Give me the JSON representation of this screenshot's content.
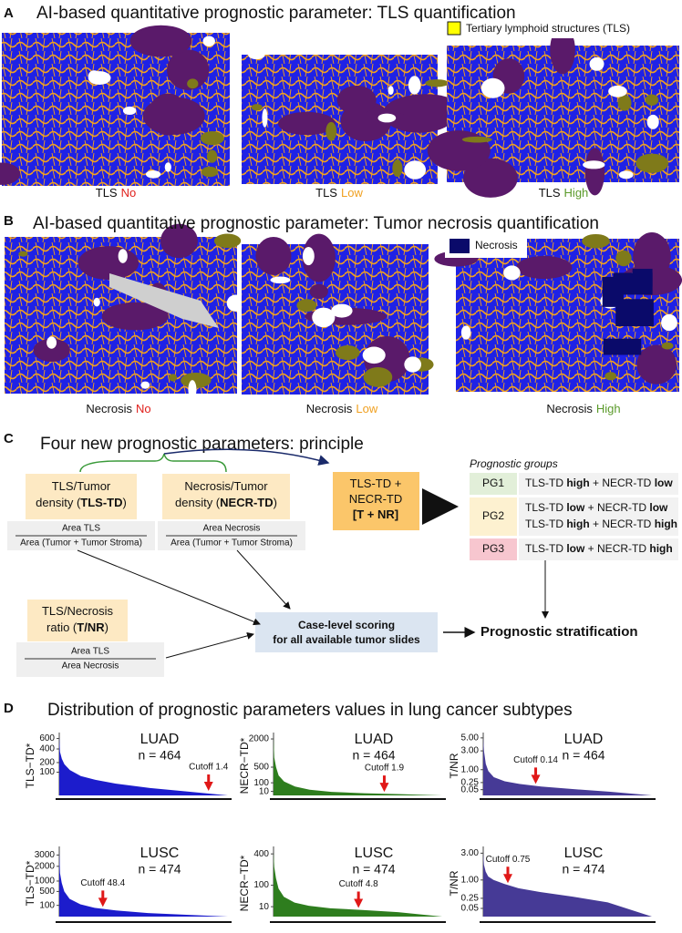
{
  "panel_a": {
    "letter": "A",
    "title": "AI-based quantitative prognostic parameter: TLS quantification",
    "legend": "Tertiary lymphoid structures (TLS)",
    "captions": [
      {
        "label": "TLS",
        "level": "No"
      },
      {
        "label": "TLS",
        "level": "Low"
      },
      {
        "label": "TLS",
        "level": "High"
      }
    ]
  },
  "panel_b": {
    "letter": "B",
    "title": "AI-based quantitative prognostic parameter: Tumor necrosis quantification",
    "legend": "Necrosis",
    "captions": [
      {
        "label": "Necrosis",
        "level": "No"
      },
      {
        "label": "Necrosis",
        "level": "Low"
      },
      {
        "label": "Necrosis",
        "level": "High"
      }
    ]
  },
  "panel_c": {
    "letter": "C",
    "title": "Four new prognostic parameters: principle",
    "tls_td": {
      "lines": [
        [
          {
            "text": "TLS/Tumor"
          }
        ],
        [
          {
            "text": "density ("
          },
          {
            "text": "TLS-TD",
            "bold": true
          },
          {
            "text": ")"
          }
        ]
      ],
      "numerator": "Area TLS",
      "denominator": "Area (Tumor + Tumor Stroma)"
    },
    "necr_td": {
      "lines": [
        [
          {
            "text": "Necrosis/Tumor"
          }
        ],
        [
          {
            "text": "density ("
          },
          {
            "text": "NECR-TD",
            "bold": true
          },
          {
            "text": ")"
          }
        ]
      ],
      "numerator": "Area Necrosis",
      "denominator": "Area (Tumor + Tumor Stroma)"
    },
    "t_nr": {
      "lines": [
        [
          {
            "text": "TLS/Necrosis"
          }
        ],
        [
          {
            "text": "ratio ("
          },
          {
            "text": "T/NR",
            "bold": true
          },
          {
            "text": ")"
          }
        ]
      ],
      "numerator": "Area TLS",
      "denominator": "Area Necrosis"
    },
    "combined": {
      "lines": [
        [
          {
            "text": "TLS-TD +"
          }
        ],
        [
          {
            "text": "NECR-TD"
          }
        ],
        [
          {
            "text": "[T + NR]",
            "bold": true
          }
        ]
      ]
    },
    "groups": {
      "header": "Prognostic groups",
      "rows": [
        {
          "name": "PG1",
          "lines": [
            [
              {
                "text": "TLS-TD "
              },
              {
                "text": "high",
                "bold": true
              },
              {
                "text": " + NECR-TD "
              },
              {
                "text": "low",
                "bold": true
              }
            ]
          ]
        },
        {
          "name": "PG2",
          "lines": [
            [
              {
                "text": "TLS-TD "
              },
              {
                "text": "low",
                "bold": true
              },
              {
                "text": " + NECR-TD "
              },
              {
                "text": "low",
                "bold": true
              }
            ],
            [
              {
                "text": "TLS-TD "
              },
              {
                "text": "high",
                "bold": true
              },
              {
                "text": " + NECR-TD "
              },
              {
                "text": "high",
                "bold": true
              }
            ]
          ]
        },
        {
          "name": "PG3",
          "lines": [
            [
              {
                "text": "TLS-TD "
              },
              {
                "text": "low",
                "bold": true
              },
              {
                "text": " + NECR-TD "
              },
              {
                "text": "high",
                "bold": true
              }
            ]
          ]
        }
      ]
    },
    "scoring": {
      "lines": [
        [
          {
            "text": "Case-level scoring",
            "bold": true
          }
        ],
        [
          {
            "text": "for all available tumor slides",
            "bold": true
          }
        ]
      ]
    },
    "outcome": "Prognostic stratification"
  },
  "panel_d": {
    "letter": "D",
    "title": "Distribution of prognostic parameters values in lung cancer subtypes",
    "charts": [
      {
        "type": "area",
        "subtype": "LUAD",
        "n_label": "n = 464",
        "ylabel": "TLS−TD*",
        "color": "#1c1ccc",
        "subtype_color": "#8e44c0",
        "yscale": "sqrt",
        "x": [
          1,
          3,
          8,
          15,
          30,
          60,
          100,
          160,
          250,
          350,
          464
        ],
        "values": [
          630,
          350,
          250,
          180,
          120,
          70,
          45,
          25,
          10,
          3,
          0
        ],
        "xlim": [
          1,
          464
        ],
        "ylim": [
          0,
          650
        ],
        "yticks": [
          100,
          200,
          400,
          600
        ],
        "cutoff": {
          "value": 1.4,
          "label": "Cutoff 1.4"
        }
      },
      {
        "type": "area",
        "subtype": "LUAD",
        "n_label": "n = 464",
        "ylabel": "NECR−TD*",
        "color": "#2e7d1e",
        "subtype_color": "#8e44c0",
        "yscale": "sqrt",
        "x": [
          1,
          3,
          8,
          15,
          30,
          60,
          100,
          160,
          250,
          350,
          464
        ],
        "values": [
          2100,
          900,
          500,
          250,
          120,
          50,
          20,
          8,
          3,
          1,
          0
        ],
        "xlim": [
          1,
          464
        ],
        "ylim": [
          0,
          2200
        ],
        "yticks": [
          10,
          100,
          500,
          2000
        ],
        "cutoff": {
          "value": 1.9,
          "label": "Cutoff 1.9"
        }
      },
      {
        "type": "area",
        "subtype": "LUAD",
        "n_label": "n = 464",
        "ylabel": "T/NR",
        "color": "#463a96",
        "subtype_color": "#8e44c0",
        "yscale": "sqrt",
        "x": [
          1,
          3,
          8,
          15,
          30,
          60,
          100,
          160,
          250,
          350,
          464
        ],
        "values": [
          5,
          3,
          1.5,
          0.9,
          0.5,
          0.3,
          0.2,
          0.12,
          0.06,
          0.02,
          0
        ],
        "xlim": [
          1,
          464
        ],
        "ylim": [
          0,
          5.3
        ],
        "yticks": [
          0.05,
          0.25,
          {
            "value": 1,
            "label": "1.00"
          },
          {
            "value": 3,
            "label": "3.00"
          },
          {
            "value": 5,
            "label": "5.00"
          }
        ],
        "cutoff": {
          "value": 0.14,
          "label": "Cutoff 0.14"
        }
      },
      {
        "type": "area",
        "subtype": "LUSC",
        "n_label": "n = 474",
        "ylabel": "TLS−TD*",
        "color": "#1c1ccc",
        "subtype_color": "#e8a060",
        "yscale": "sqrt",
        "x": [
          1,
          3,
          8,
          15,
          30,
          60,
          100,
          160,
          250,
          350,
          474
        ],
        "values": [
          3400,
          1500,
          900,
          500,
          250,
          120,
          60,
          30,
          10,
          3,
          0
        ],
        "xlim": [
          1,
          474
        ],
        "ylim": [
          0,
          3500
        ],
        "yticks": [
          100,
          500,
          1000,
          2000,
          3000
        ],
        "cutoff": {
          "value": 48.4,
          "label": "Cutoff 48.4"
        }
      },
      {
        "type": "area",
        "subtype": "LUSC",
        "n_label": "n = 474",
        "ylabel": "NECR−TD*",
        "color": "#2e7d1e",
        "subtype_color": "#e8a060",
        "yscale": "sqrt",
        "x": [
          1,
          3,
          8,
          15,
          30,
          60,
          100,
          160,
          250,
          350,
          474
        ],
        "values": [
          420,
          250,
          150,
          80,
          40,
          20,
          12,
          7,
          4.5,
          2,
          0
        ],
        "xlim": [
          1,
          474
        ],
        "ylim": [
          0,
          450
        ],
        "yticks": [
          10,
          100,
          400
        ],
        "cutoff": {
          "value": 4.8,
          "label": "Cutoff 4.8"
        }
      },
      {
        "type": "area",
        "subtype": "LUSC",
        "n_label": "n = 474",
        "ylabel": "T/NR",
        "color": "#463a96",
        "subtype_color": "#e8a060",
        "yscale": "sqrt",
        "x": [
          1,
          3,
          8,
          15,
          30,
          60,
          100,
          160,
          250,
          350,
          474
        ],
        "values": [
          3,
          2,
          1.5,
          1.2,
          1,
          0.8,
          0.6,
          0.45,
          0.3,
          0.15,
          0
        ],
        "xlim": [
          1,
          474
        ],
        "ylim": [
          0,
          3.3
        ],
        "yticks": [
          0.05,
          0.25,
          {
            "value": 1,
            "label": "1.00"
          },
          {
            "value": 3,
            "label": "3.00"
          }
        ],
        "cutoff": {
          "value": 0.75,
          "label": "Cutoff 0.75"
        }
      }
    ]
  }
}
